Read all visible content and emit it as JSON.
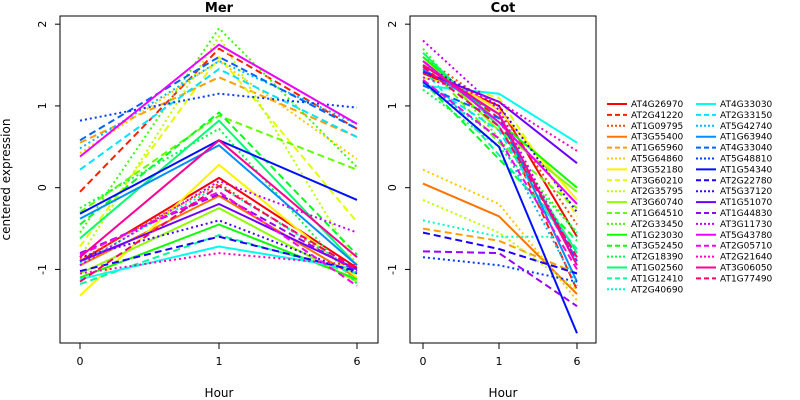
{
  "chart_data": {
    "type": "line",
    "ylabel": "centered expression",
    "xlabel": "Hour",
    "x_ticks": [
      "0",
      "1",
      "6"
    ],
    "y_ticks": [
      "-1",
      "0",
      "1",
      "2"
    ],
    "ylim": [
      -1.9,
      2.1
    ],
    "panels": [
      {
        "title": "Mer",
        "series": [
          {
            "name": "AT4G26970",
            "values": [
              -0.9,
              0.12,
              -0.98
            ]
          },
          {
            "name": "AT2G41220",
            "values": [
              -0.05,
              1.7,
              0.72
            ]
          },
          {
            "name": "AT1G09795",
            "values": [
              -0.88,
              0.05,
              -1.05
            ]
          },
          {
            "name": "AT3G55400",
            "values": [
              -0.95,
              -0.1,
              -1.1
            ]
          },
          {
            "name": "AT1G65960",
            "values": [
              0.55,
              1.35,
              0.62
            ]
          },
          {
            "name": "AT5G64860",
            "values": [
              0.42,
              1.55,
              0.35
            ]
          },
          {
            "name": "AT3G52180",
            "values": [
              -1.32,
              0.28,
              -1.1
            ]
          },
          {
            "name": "AT3G60210",
            "values": [
              -0.72,
              1.6,
              -0.42
            ]
          },
          {
            "name": "AT2G35795",
            "values": [
              -0.85,
              1.85,
              -0.95
            ]
          },
          {
            "name": "AT3G60740",
            "values": [
              -1.05,
              -0.25,
              -1.15
            ]
          },
          {
            "name": "AT1G64510",
            "values": [
              -0.3,
              0.88,
              0.22
            ]
          },
          {
            "name": "AT2G33450",
            "values": [
              -0.55,
              1.95,
              0.25
            ]
          },
          {
            "name": "AT1G23030",
            "values": [
              -1.1,
              -0.45,
              -1.12
            ]
          },
          {
            "name": "AT3G52450",
            "values": [
              -0.45,
              0.92,
              -0.82
            ]
          },
          {
            "name": "AT2G18390",
            "values": [
              -0.25,
              0.72,
              -1.18
            ]
          },
          {
            "name": "AT1G02560",
            "values": [
              -0.62,
              0.82,
              -0.95
            ]
          },
          {
            "name": "AT1G12410",
            "values": [
              -1.18,
              -0.58,
              -1.05
            ]
          },
          {
            "name": "AT2G40690",
            "values": [
              -0.92,
              0.02,
              -1.02
            ]
          },
          {
            "name": "AT4G33030",
            "values": [
              -1.12,
              -0.72,
              -1.0
            ]
          },
          {
            "name": "AT2G33150",
            "values": [
              0.22,
              1.45,
              0.62
            ]
          },
          {
            "name": "AT5G42740",
            "values": [
              0.48,
              1.55,
              0.78
            ]
          },
          {
            "name": "AT1G63940",
            "values": [
              -0.38,
              0.52,
              -0.95
            ]
          },
          {
            "name": "AT4G33040",
            "values": [
              0.58,
              1.6,
              0.72
            ]
          },
          {
            "name": "AT5G48810",
            "values": [
              0.82,
              1.15,
              0.98
            ]
          },
          {
            "name": "AT1G54340",
            "values": [
              -0.32,
              0.58,
              -0.15
            ]
          },
          {
            "name": "AT2G22780",
            "values": [
              -1.02,
              -0.6,
              -1.02
            ]
          },
          {
            "name": "AT5G37120",
            "values": [
              -0.85,
              -0.4,
              -1.05
            ]
          },
          {
            "name": "AT1G51070",
            "values": [
              -0.9,
              -0.2,
              -1.0
            ]
          },
          {
            "name": "AT1G44830",
            "values": [
              -0.8,
              -0.08,
              -1.02
            ]
          },
          {
            "name": "AT3G11730",
            "values": [
              -0.95,
              0.08,
              -0.55
            ]
          },
          {
            "name": "AT5G43780",
            "values": [
              0.38,
              1.75,
              0.78
            ]
          },
          {
            "name": "AT2G05710",
            "values": [
              -0.82,
              -0.05,
              -1.2
            ]
          },
          {
            "name": "AT2G21640",
            "values": [
              -1.05,
              -0.8,
              -0.95
            ]
          },
          {
            "name": "AT3G06050",
            "values": [
              -0.85,
              0.58,
              -0.85
            ]
          },
          {
            "name": "AT1G77490",
            "values": [
              -1.15,
              0.02,
              -1.0
            ]
          }
        ]
      },
      {
        "title": "Cot",
        "series": [
          {
            "name": "AT4G26970",
            "values": [
              1.4,
              1.0,
              -0.6
            ]
          },
          {
            "name": "AT2G41220",
            "values": [
              1.55,
              0.85,
              -1.25
            ]
          },
          {
            "name": "AT1G09795",
            "values": [
              1.6,
              0.95,
              -0.45
            ]
          },
          {
            "name": "AT3G55400",
            "values": [
              0.05,
              -0.35,
              -1.3
            ]
          },
          {
            "name": "AT1G65960",
            "values": [
              -0.5,
              -0.65,
              -1.05
            ]
          },
          {
            "name": "AT5G64860",
            "values": [
              0.22,
              -0.2,
              -1.38
            ]
          },
          {
            "name": "AT3G52180",
            "values": [
              1.5,
              0.95,
              -0.15
            ]
          },
          {
            "name": "AT3G60210",
            "values": [
              1.35,
              1.1,
              -0.35
            ]
          },
          {
            "name": "AT2G35795",
            "values": [
              -0.15,
              -0.55,
              -1.25
            ]
          },
          {
            "name": "AT3G60740",
            "values": [
              1.6,
              0.7,
              -0.05
            ]
          },
          {
            "name": "AT1G64510",
            "values": [
              1.55,
              0.55,
              -0.25
            ]
          },
          {
            "name": "AT2G33450",
            "values": [
              1.7,
              0.6,
              -0.55
            ]
          },
          {
            "name": "AT1G23030",
            "values": [
              1.6,
              0.8,
              0.0
            ]
          },
          {
            "name": "AT3G52450",
            "values": [
              1.3,
              0.35,
              -0.65
            ]
          },
          {
            "name": "AT2G18390",
            "values": [
              1.2,
              0.5,
              -0.55
            ]
          },
          {
            "name": "AT1G02560",
            "values": [
              1.65,
              0.75,
              -0.8
            ]
          },
          {
            "name": "AT1G12410",
            "values": [
              1.45,
              0.4,
              -0.75
            ]
          },
          {
            "name": "AT2G40690",
            "values": [
              -0.4,
              -0.6,
              -0.6
            ]
          },
          {
            "name": "AT4G33030",
            "values": [
              1.25,
              1.15,
              0.55
            ]
          },
          {
            "name": "AT2G33150",
            "values": [
              1.3,
              0.7,
              -0.9
            ]
          },
          {
            "name": "AT5G42740",
            "values": [
              1.28,
              0.6,
              -1.2
            ]
          },
          {
            "name": "AT1G63940",
            "values": [
              1.45,
              0.9,
              -1.15
            ]
          },
          {
            "name": "AT4G33040",
            "values": [
              1.25,
              0.85,
              -0.9
            ]
          },
          {
            "name": "AT5G48810",
            "values": [
              -0.85,
              -0.95,
              -1.15
            ]
          },
          {
            "name": "AT1G54340",
            "values": [
              1.3,
              0.5,
              -1.78
            ]
          },
          {
            "name": "AT2G22780",
            "values": [
              -0.55,
              -0.75,
              -1.05
            ]
          },
          {
            "name": "AT5G37120",
            "values": [
              1.5,
              1.0,
              -0.3
            ]
          },
          {
            "name": "AT1G51070",
            "values": [
              1.42,
              1.05,
              0.3
            ]
          },
          {
            "name": "AT1G44830",
            "values": [
              -0.78,
              -0.8,
              -1.45
            ]
          },
          {
            "name": "AT3G11730",
            "values": [
              1.8,
              0.95,
              -0.9
            ]
          },
          {
            "name": "AT5G43780",
            "values": [
              1.55,
              0.8,
              -0.2
            ]
          },
          {
            "name": "AT2G05710",
            "values": [
              1.32,
              0.6,
              -1.0
            ]
          },
          {
            "name": "AT2G21640",
            "values": [
              1.35,
              1.05,
              0.45
            ]
          },
          {
            "name": "AT3G06050",
            "values": [
              1.5,
              0.9,
              -0.95
            ]
          },
          {
            "name": "AT1G77490",
            "values": [
              1.48,
              0.75,
              -0.85
            ]
          }
        ]
      }
    ],
    "legend_position": "right",
    "series_styles": [
      {
        "color": "#FF0000",
        "dash": "solid"
      },
      {
        "color": "#FF1F00",
        "dash": "dashed"
      },
      {
        "color": "#FF4900",
        "dash": "dotted"
      },
      {
        "color": "#FF7300",
        "dash": "solid"
      },
      {
        "color": "#FF9E00",
        "dash": "dashed"
      },
      {
        "color": "#FFC800",
        "dash": "dotted"
      },
      {
        "color": "#FFF200",
        "dash": "solid"
      },
      {
        "color": "#E1FF00",
        "dash": "dashed"
      },
      {
        "color": "#B7FF00",
        "dash": "dotted"
      },
      {
        "color": "#8DFF00",
        "dash": "solid"
      },
      {
        "color": "#62FF00",
        "dash": "dashed"
      },
      {
        "color": "#38FF00",
        "dash": "dotted"
      },
      {
        "color": "#0EFF00",
        "dash": "solid"
      },
      {
        "color": "#00FF1C",
        "dash": "dashed"
      },
      {
        "color": "#00FF46",
        "dash": "dotted"
      },
      {
        "color": "#00FF71",
        "dash": "solid"
      },
      {
        "color": "#00FF9B",
        "dash": "dashed"
      },
      {
        "color": "#00FFC5",
        "dash": "dotted"
      },
      {
        "color": "#00FFEF",
        "dash": "solid"
      },
      {
        "color": "#00E3FF",
        "dash": "dashed"
      },
      {
        "color": "#00B9FF",
        "dash": "dotted"
      },
      {
        "color": "#008FFF",
        "dash": "solid"
      },
      {
        "color": "#0065FF",
        "dash": "dashed"
      },
      {
        "color": "#003AFF",
        "dash": "dotted"
      },
      {
        "color": "#0010FF",
        "dash": "solid"
      },
      {
        "color": "#1A00FF",
        "dash": "dashed"
      },
      {
        "color": "#4400FF",
        "dash": "dotted"
      },
      {
        "color": "#6E00FF",
        "dash": "solid"
      },
      {
        "color": "#9800FF",
        "dash": "dashed"
      },
      {
        "color": "#C300FF",
        "dash": "dotted"
      },
      {
        "color": "#ED00FF",
        "dash": "solid"
      },
      {
        "color": "#FF00E7",
        "dash": "dashed"
      },
      {
        "color": "#FF00BD",
        "dash": "dotted"
      },
      {
        "color": "#FF0093",
        "dash": "solid"
      },
      {
        "color": "#FF0069",
        "dash": "dashed"
      }
    ]
  }
}
